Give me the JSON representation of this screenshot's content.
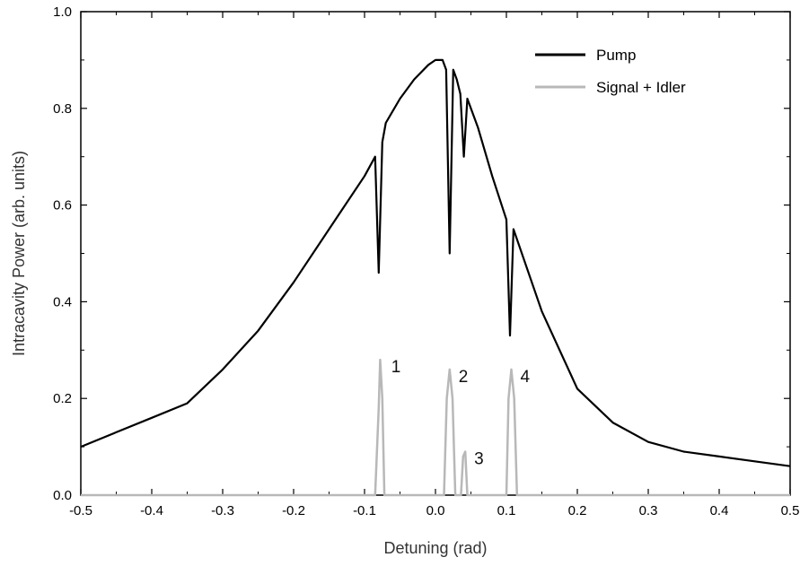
{
  "chart_data": {
    "type": "line",
    "xlabel": "Detuning (rad)",
    "ylabel": "Intracavity Power (arb. units)",
    "xlim": [
      -0.5,
      0.5
    ],
    "ylim": [
      0.0,
      1.0
    ],
    "x_ticks": [
      "-0.5",
      "-0.4",
      "-0.3",
      "-0.2",
      "-0.1",
      "0.0",
      "0.1",
      "0.2",
      "0.3",
      "0.4",
      "0.5"
    ],
    "y_ticks": [
      "0.0",
      "0.2",
      "0.4",
      "0.6",
      "0.8",
      "1.0"
    ],
    "grid": false,
    "legend_position": "top-right",
    "series": [
      {
        "name": "Pump",
        "color": "#000000",
        "x": [
          -0.5,
          -0.45,
          -0.4,
          -0.35,
          -0.3,
          -0.25,
          -0.2,
          -0.15,
          -0.1,
          -0.085,
          -0.08,
          -0.075,
          -0.07,
          -0.05,
          -0.03,
          -0.01,
          0.0,
          0.01,
          0.015,
          0.02,
          0.025,
          0.03,
          0.035,
          0.04,
          0.045,
          0.06,
          0.08,
          0.1,
          0.105,
          0.11,
          0.15,
          0.2,
          0.25,
          0.3,
          0.35,
          0.4,
          0.45,
          0.5
        ],
        "y": [
          0.1,
          0.13,
          0.16,
          0.19,
          0.26,
          0.34,
          0.44,
          0.55,
          0.66,
          0.7,
          0.46,
          0.73,
          0.77,
          0.82,
          0.86,
          0.89,
          0.9,
          0.9,
          0.88,
          0.5,
          0.88,
          0.86,
          0.83,
          0.7,
          0.82,
          0.76,
          0.66,
          0.57,
          0.33,
          0.55,
          0.38,
          0.22,
          0.15,
          0.11,
          0.09,
          0.08,
          0.07,
          0.06
        ]
      },
      {
        "name": "Signal + Idler",
        "color": "#b8b8b8",
        "x": [
          -0.5,
          -0.085,
          -0.08,
          -0.078,
          -0.075,
          -0.072,
          0.012,
          0.016,
          0.02,
          0.024,
          0.028,
          0.036,
          0.039,
          0.042,
          0.045,
          0.1,
          0.103,
          0.107,
          0.111,
          0.115,
          0.5
        ],
        "y": [
          0.0,
          0.0,
          0.18,
          0.28,
          0.2,
          0.0,
          0.0,
          0.2,
          0.26,
          0.2,
          0.0,
          0.0,
          0.08,
          0.09,
          0.0,
          0.0,
          0.2,
          0.26,
          0.2,
          0.0,
          0.0
        ]
      }
    ],
    "annotations": [
      {
        "text": "1",
        "x": -0.075,
        "y": 0.28
      },
      {
        "text": "2",
        "x": 0.02,
        "y": 0.26
      },
      {
        "text": "3",
        "x": 0.042,
        "y": 0.09
      },
      {
        "text": "4",
        "x": 0.107,
        "y": 0.26
      }
    ]
  }
}
